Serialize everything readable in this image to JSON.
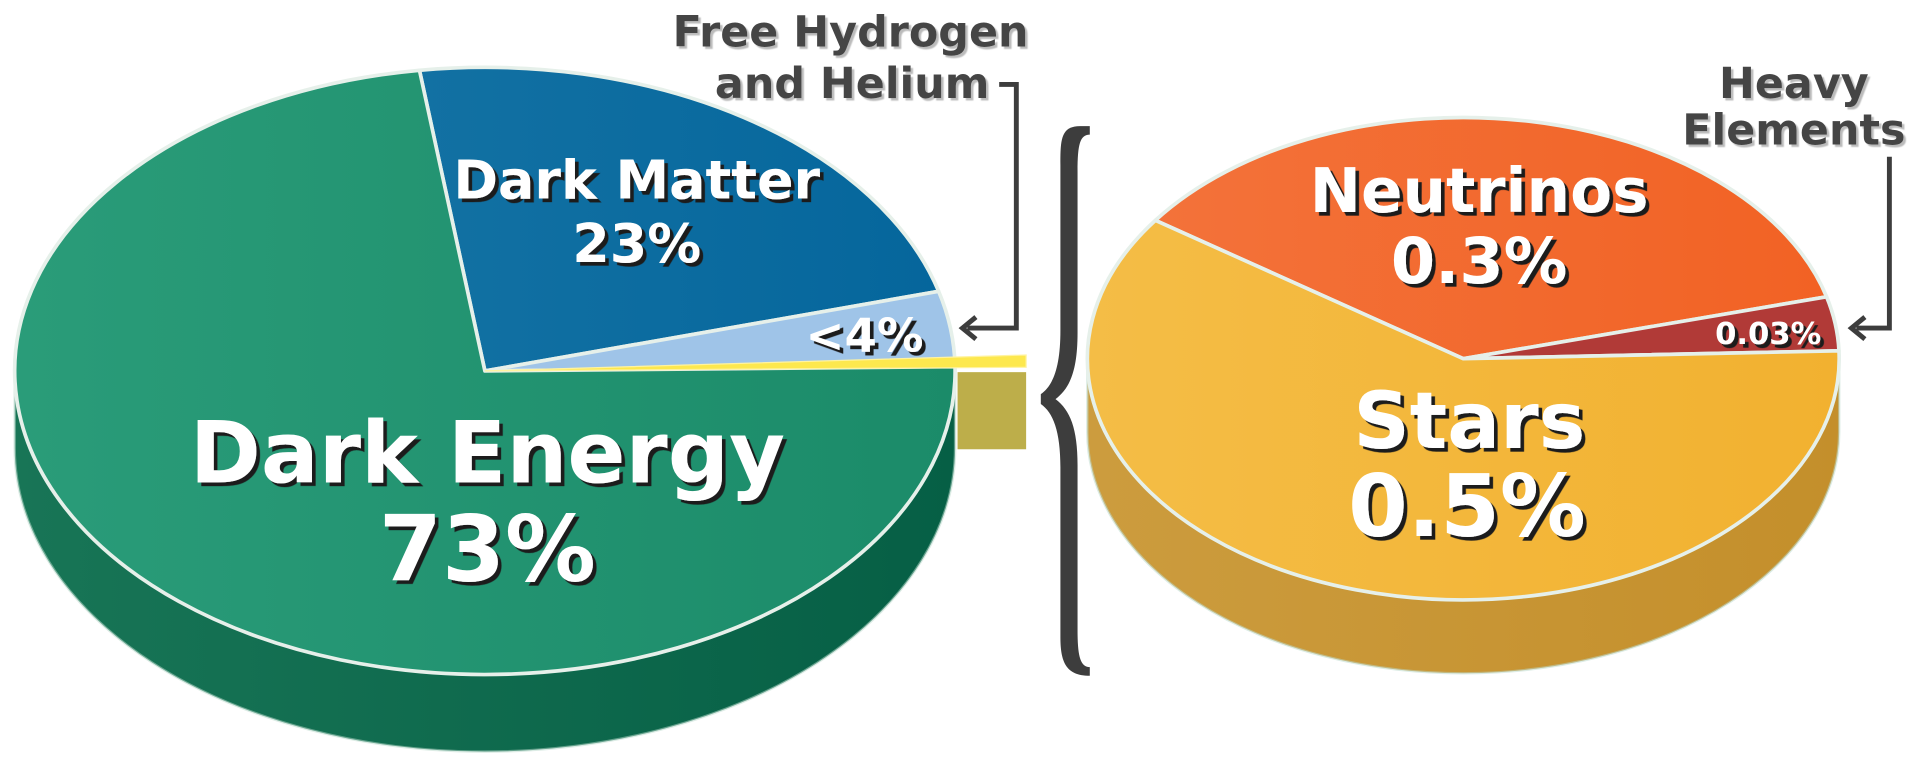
{
  "chart_data": [
    {
      "type": "pie",
      "style": "3d-exploded",
      "slices": [
        {
          "label": "Dark Matter",
          "value_label": "23%",
          "value": 23,
          "color": "#0b6ba0"
        },
        {
          "label": "Free Hydrogen and Helium",
          "value_label": "<4%",
          "value": 4,
          "color": "#9fc4e8"
        },
        {
          "label": "Dark Energy",
          "value_label": "73%",
          "value": 73,
          "color": "#22937099"
        }
      ],
      "exploded_slice_color": "#fde84e",
      "callout": "Free Hydrogen and Helium",
      "callout_lines": [
        "Free Hydrogen",
        "and Helium"
      ]
    },
    {
      "type": "pie",
      "style": "3d",
      "slices": [
        {
          "label": "Neutrinos",
          "value_label": "0.3%",
          "value": 0.3,
          "color": "#f26a2e"
        },
        {
          "label": "Heavy Elements",
          "value_label": "0.03%",
          "value": 0.03,
          "color": "#b13a37"
        },
        {
          "label": "Stars",
          "value_label": "0.5%",
          "value": 0.5,
          "color": "#f3b63c"
        }
      ],
      "callout": "Heavy Elements",
      "callout_lines": [
        "Heavy",
        "Elements"
      ]
    }
  ]
}
